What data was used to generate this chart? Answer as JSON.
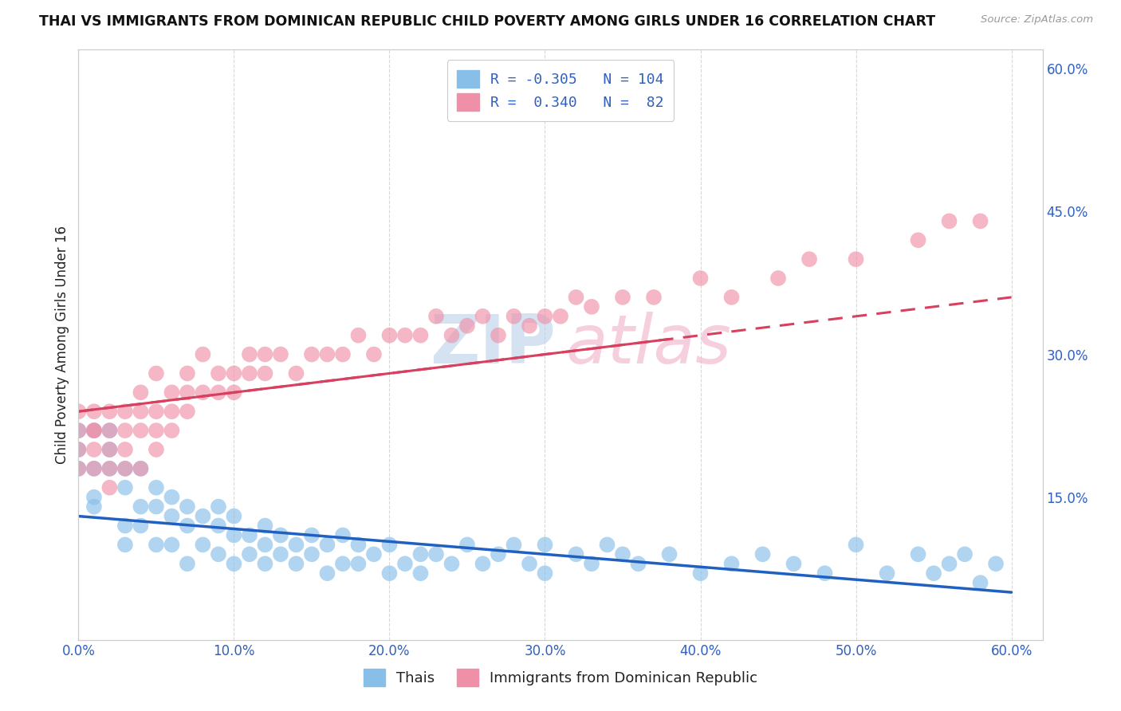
{
  "title": "THAI VS IMMIGRANTS FROM DOMINICAN REPUBLIC CHILD POVERTY AMONG GIRLS UNDER 16 CORRELATION CHART",
  "source": "Source: ZipAtlas.com",
  "ylabel": "Child Poverty Among Girls Under 16",
  "legend_r1_val": "-0.305",
  "legend_n1_val": "104",
  "legend_r2_val": "0.340",
  "legend_n2_val": "82",
  "color_thai": "#88bfe8",
  "color_dr": "#f090a8",
  "color_thai_line": "#2060c0",
  "color_dr_line": "#d84060",
  "xlim": [
    0.0,
    0.62
  ],
  "ylim": [
    0.0,
    0.62
  ],
  "xticks": [
    0.0,
    0.1,
    0.2,
    0.3,
    0.4,
    0.5,
    0.6
  ],
  "yticks_right": [
    0.15,
    0.3,
    0.45,
    0.6
  ],
  "ytick_labels_right": [
    "15.0%",
    "30.0%",
    "45.0%",
    "60.0%"
  ],
  "xtick_labels": [
    "0.0%",
    "10.0%",
    "20.0%",
    "30.0%",
    "40.0%",
    "50.0%",
    "60.0%"
  ],
  "bg_color": "#ffffff",
  "grid_color": "#d8d8d8",
  "axis_label_color": "#3060c0",
  "title_color": "#111111",
  "label_color": "#222222",
  "thai_label": "Thais",
  "dr_label": "Immigrants from Dominican Republic",
  "watermark_zip_color": "#b8d0e8",
  "watermark_atlas_color": "#f0b0c8",
  "thai_x": [
    0.0,
    0.0,
    0.0,
    0.01,
    0.01,
    0.01,
    0.01,
    0.02,
    0.02,
    0.02,
    0.03,
    0.03,
    0.03,
    0.03,
    0.04,
    0.04,
    0.04,
    0.05,
    0.05,
    0.05,
    0.06,
    0.06,
    0.06,
    0.07,
    0.07,
    0.07,
    0.08,
    0.08,
    0.09,
    0.09,
    0.09,
    0.1,
    0.1,
    0.1,
    0.11,
    0.11,
    0.12,
    0.12,
    0.12,
    0.13,
    0.13,
    0.14,
    0.14,
    0.15,
    0.15,
    0.16,
    0.16,
    0.17,
    0.17,
    0.18,
    0.18,
    0.19,
    0.2,
    0.2,
    0.21,
    0.22,
    0.22,
    0.23,
    0.24,
    0.25,
    0.26,
    0.27,
    0.28,
    0.29,
    0.3,
    0.3,
    0.32,
    0.33,
    0.34,
    0.35,
    0.36,
    0.38,
    0.4,
    0.42,
    0.44,
    0.46,
    0.48,
    0.5,
    0.52,
    0.54,
    0.55,
    0.56,
    0.57,
    0.58,
    0.59
  ],
  "thai_y": [
    0.22,
    0.2,
    0.18,
    0.18,
    0.15,
    0.14,
    0.22,
    0.18,
    0.2,
    0.22,
    0.12,
    0.16,
    0.18,
    0.1,
    0.14,
    0.18,
    0.12,
    0.1,
    0.14,
    0.16,
    0.1,
    0.13,
    0.15,
    0.08,
    0.12,
    0.14,
    0.1,
    0.13,
    0.09,
    0.12,
    0.14,
    0.08,
    0.11,
    0.13,
    0.09,
    0.11,
    0.08,
    0.1,
    0.12,
    0.09,
    0.11,
    0.08,
    0.1,
    0.09,
    0.11,
    0.07,
    0.1,
    0.08,
    0.11,
    0.08,
    0.1,
    0.09,
    0.07,
    0.1,
    0.08,
    0.09,
    0.07,
    0.09,
    0.08,
    0.1,
    0.08,
    0.09,
    0.1,
    0.08,
    0.07,
    0.1,
    0.09,
    0.08,
    0.1,
    0.09,
    0.08,
    0.09,
    0.07,
    0.08,
    0.09,
    0.08,
    0.07,
    0.1,
    0.07,
    0.09,
    0.07,
    0.08,
    0.09,
    0.06,
    0.08
  ],
  "dr_x": [
    0.0,
    0.0,
    0.0,
    0.0,
    0.01,
    0.01,
    0.01,
    0.01,
    0.01,
    0.02,
    0.02,
    0.02,
    0.02,
    0.02,
    0.03,
    0.03,
    0.03,
    0.03,
    0.04,
    0.04,
    0.04,
    0.04,
    0.05,
    0.05,
    0.05,
    0.05,
    0.06,
    0.06,
    0.06,
    0.07,
    0.07,
    0.07,
    0.08,
    0.08,
    0.09,
    0.09,
    0.1,
    0.1,
    0.11,
    0.11,
    0.12,
    0.12,
    0.13,
    0.14,
    0.15,
    0.16,
    0.17,
    0.18,
    0.19,
    0.2,
    0.21,
    0.22,
    0.23,
    0.24,
    0.25,
    0.26,
    0.27,
    0.28,
    0.29,
    0.3,
    0.31,
    0.32,
    0.33,
    0.35,
    0.37,
    0.4,
    0.42,
    0.45,
    0.47,
    0.5,
    0.54,
    0.56,
    0.58
  ],
  "dr_y": [
    0.22,
    0.2,
    0.24,
    0.18,
    0.22,
    0.2,
    0.24,
    0.18,
    0.22,
    0.2,
    0.22,
    0.16,
    0.18,
    0.24,
    0.2,
    0.22,
    0.24,
    0.18,
    0.18,
    0.22,
    0.24,
    0.26,
    0.2,
    0.24,
    0.22,
    0.28,
    0.22,
    0.24,
    0.26,
    0.24,
    0.26,
    0.28,
    0.26,
    0.3,
    0.26,
    0.28,
    0.26,
    0.28,
    0.28,
    0.3,
    0.28,
    0.3,
    0.3,
    0.28,
    0.3,
    0.3,
    0.3,
    0.32,
    0.3,
    0.32,
    0.32,
    0.32,
    0.34,
    0.32,
    0.33,
    0.34,
    0.32,
    0.34,
    0.33,
    0.34,
    0.34,
    0.36,
    0.35,
    0.36,
    0.36,
    0.38,
    0.36,
    0.38,
    0.4,
    0.4,
    0.42,
    0.44,
    0.44
  ]
}
